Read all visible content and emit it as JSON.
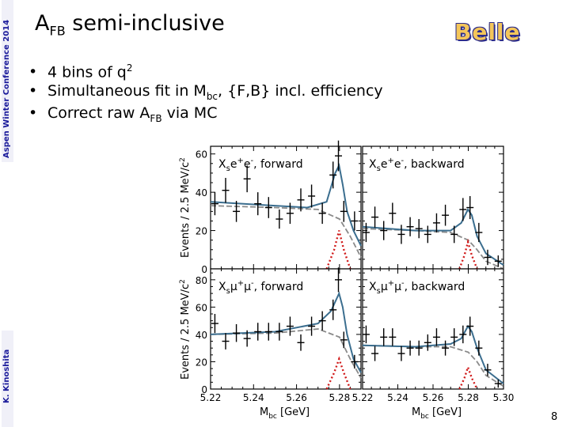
{
  "sidebar": {
    "conference": "Aspen Winter Conference 2014",
    "author": "K. Kinoshita"
  },
  "header": {
    "title_main": "A",
    "title_sub": "FB",
    "title_rest": " semi-inclusive",
    "logo": "Belle"
  },
  "bullets": [
    {
      "text": "4 bins of q",
      "sup": "2",
      "tail": ""
    },
    {
      "text": "Simultaneous fit in M",
      "sub": "bc",
      "tail": ", {F,B} incl. efficiency"
    },
    {
      "text": "Correct raw A",
      "sub": "FB",
      "tail": " via MC"
    }
  ],
  "page_number": "8",
  "chart_data": {
    "type": "scatter",
    "xlabel_main": "M",
    "xlabel_sub": "bc",
    "xlabel_unit": " [GeV]",
    "ylabel": "Events / 2.5 MeV/c",
    "ylabel_sup": "2",
    "x_ticks_left": [
      "5.22",
      "5.24",
      "5.26",
      "5.28"
    ],
    "x_ticks_right": [
      "5.22",
      "5.24",
      "5.26",
      "5.28",
      "5.30"
    ],
    "panels": [
      {
        "label_pre": "X",
        "label_sub": "s",
        "label_mid": "e",
        "label_sup1": "+",
        "label_mid2": "e",
        "label_sup2": "-",
        "label_post": ", forward",
        "xlim": [
          5.22,
          5.29
        ],
        "ylim": [
          0,
          64
        ],
        "yticks": [
          "0",
          "20",
          "40",
          "60"
        ],
        "points": [
          [
            5.222,
            34
          ],
          [
            5.227,
            41
          ],
          [
            5.232,
            30
          ],
          [
            5.237,
            47
          ],
          [
            5.242,
            34
          ],
          [
            5.247,
            32
          ],
          [
            5.252,
            26
          ],
          [
            5.257,
            29
          ],
          [
            5.262,
            36
          ],
          [
            5.267,
            38
          ],
          [
            5.272,
            29
          ],
          [
            5.277,
            49
          ],
          [
            5.2795,
            59
          ],
          [
            5.282,
            30
          ],
          [
            5.287,
            25
          ]
        ],
        "errors": [
          6,
          6.5,
          5.5,
          7,
          6,
          5.5,
          5,
          5.5,
          6,
          6,
          5.5,
          7,
          8,
          5.5,
          5
        ],
        "total_fit": [
          [
            5.22,
            35
          ],
          [
            5.25,
            33
          ],
          [
            5.265,
            32
          ],
          [
            5.274,
            35
          ],
          [
            5.278,
            50
          ],
          [
            5.2798,
            54
          ],
          [
            5.2815,
            44
          ],
          [
            5.2835,
            30
          ],
          [
            5.2865,
            20
          ],
          [
            5.29,
            12
          ]
        ],
        "signal_fit": [
          [
            5.274,
            0
          ],
          [
            5.2775,
            10
          ],
          [
            5.2798,
            20
          ],
          [
            5.282,
            10
          ],
          [
            5.285,
            0
          ]
        ],
        "background_fit": [
          [
            5.22,
            33
          ],
          [
            5.25,
            32
          ],
          [
            5.27,
            31
          ],
          [
            5.28,
            26
          ],
          [
            5.285,
            17
          ],
          [
            5.29,
            6
          ]
        ]
      },
      {
        "label_pre": "X",
        "label_sub": "s",
        "label_mid": "e",
        "label_sup1": "+",
        "label_mid2": "e",
        "label_sup2": "-",
        "label_post": ", backward",
        "xlim": [
          5.22,
          5.3
        ],
        "ylim": [
          0,
          64
        ],
        "yticks": [],
        "points": [
          [
            5.222,
            19
          ],
          [
            5.227,
            27
          ],
          [
            5.232,
            20
          ],
          [
            5.237,
            29
          ],
          [
            5.242,
            18
          ],
          [
            5.247,
            22
          ],
          [
            5.252,
            21
          ],
          [
            5.257,
            18
          ],
          [
            5.262,
            24
          ],
          [
            5.267,
            28
          ],
          [
            5.272,
            18
          ],
          [
            5.277,
            31
          ],
          [
            5.281,
            32
          ],
          [
            5.286,
            19
          ],
          [
            5.291,
            6
          ],
          [
            5.297,
            4
          ]
        ],
        "errors": [
          5,
          5.5,
          5,
          5.5,
          5,
          5,
          5,
          4.5,
          5,
          5.5,
          4.5,
          6,
          6,
          5,
          4,
          3
        ],
        "total_fit": [
          [
            5.22,
            22
          ],
          [
            5.25,
            20
          ],
          [
            5.27,
            20
          ],
          [
            5.276,
            24
          ],
          [
            5.2798,
            31
          ],
          [
            5.282,
            28
          ],
          [
            5.285,
            17
          ],
          [
            5.29,
            8
          ],
          [
            5.3,
            2
          ]
        ],
        "signal_fit": [
          [
            5.275,
            0
          ],
          [
            5.2778,
            7
          ],
          [
            5.2798,
            14
          ],
          [
            5.282,
            7
          ],
          [
            5.285,
            0
          ]
        ],
        "background_fit": [
          [
            5.22,
            21
          ],
          [
            5.25,
            20
          ],
          [
            5.27,
            19
          ],
          [
            5.28,
            15
          ],
          [
            5.285,
            10
          ],
          [
            5.29,
            4
          ],
          [
            5.3,
            0
          ]
        ]
      },
      {
        "label_pre": "X",
        "label_sub": "s",
        "label_mid": "μ",
        "label_sup1": "+",
        "label_mid2": "μ",
        "label_sup2": "-",
        "label_post": ", forward",
        "xlim": [
          5.22,
          5.29
        ],
        "ylim": [
          0,
          88
        ],
        "yticks": [
          "0",
          "20",
          "40",
          "60",
          "80"
        ],
        "points": [
          [
            5.222,
            48
          ],
          [
            5.227,
            35
          ],
          [
            5.232,
            41
          ],
          [
            5.237,
            37
          ],
          [
            5.242,
            42
          ],
          [
            5.247,
            42
          ],
          [
            5.252,
            42
          ],
          [
            5.257,
            46
          ],
          [
            5.262,
            34
          ],
          [
            5.267,
            46
          ],
          [
            5.272,
            50
          ],
          [
            5.277,
            58
          ],
          [
            5.2795,
            80
          ],
          [
            5.282,
            36
          ],
          [
            5.287,
            20
          ]
        ],
        "errors": [
          7,
          6,
          6.5,
          6,
          6.5,
          6.5,
          6.5,
          7,
          6,
          7,
          7,
          7.5,
          9,
          6,
          5
        ],
        "total_fit": [
          [
            5.22,
            40
          ],
          [
            5.25,
            42
          ],
          [
            5.27,
            48
          ],
          [
            5.276,
            57
          ],
          [
            5.2798,
            70
          ],
          [
            5.2815,
            60
          ],
          [
            5.2835,
            40
          ],
          [
            5.2865,
            22
          ],
          [
            5.29,
            12
          ]
        ],
        "signal_fit": [
          [
            5.274,
            0
          ],
          [
            5.2775,
            12
          ],
          [
            5.2798,
            22
          ],
          [
            5.282,
            12
          ],
          [
            5.285,
            0
          ]
        ],
        "background_fit": [
          [
            5.22,
            40
          ],
          [
            5.25,
            41
          ],
          [
            5.27,
            44
          ],
          [
            5.28,
            38
          ],
          [
            5.285,
            22
          ],
          [
            5.29,
            8
          ]
        ]
      },
      {
        "label_pre": "X",
        "label_sub": "s",
        "label_mid": "μ",
        "label_sup1": "+",
        "label_mid2": "μ",
        "label_sup2": "-",
        "label_post": ", backward",
        "xlim": [
          5.22,
          5.3
        ],
        "ylim": [
          0,
          88
        ],
        "yticks": [],
        "points": [
          [
            5.222,
            40
          ],
          [
            5.227,
            26
          ],
          [
            5.232,
            38
          ],
          [
            5.237,
            38
          ],
          [
            5.242,
            26
          ],
          [
            5.247,
            30
          ],
          [
            5.252,
            30
          ],
          [
            5.257,
            34
          ],
          [
            5.262,
            38
          ],
          [
            5.267,
            30
          ],
          [
            5.272,
            38
          ],
          [
            5.277,
            40
          ],
          [
            5.281,
            46
          ],
          [
            5.286,
            30
          ],
          [
            5.291,
            14
          ],
          [
            5.297,
            4
          ]
        ],
        "errors": [
          6.5,
          5.5,
          6.5,
          6.5,
          5.5,
          5.5,
          5.5,
          6,
          6.5,
          5.5,
          6.5,
          6.5,
          7,
          5.5,
          4.5,
          3
        ],
        "total_fit": [
          [
            5.22,
            32
          ],
          [
            5.25,
            31
          ],
          [
            5.27,
            33
          ],
          [
            5.276,
            37
          ],
          [
            5.2798,
            46
          ],
          [
            5.282,
            42
          ],
          [
            5.285,
            30
          ],
          [
            5.29,
            14
          ],
          [
            5.3,
            4
          ]
        ],
        "signal_fit": [
          [
            5.275,
            0
          ],
          [
            5.2778,
            8
          ],
          [
            5.2798,
            16
          ],
          [
            5.282,
            8
          ],
          [
            5.285,
            0
          ]
        ],
        "background_fit": [
          [
            5.22,
            32
          ],
          [
            5.25,
            31
          ],
          [
            5.27,
            31
          ],
          [
            5.28,
            27
          ],
          [
            5.285,
            20
          ],
          [
            5.29,
            10
          ],
          [
            5.3,
            2
          ]
        ]
      }
    ]
  }
}
